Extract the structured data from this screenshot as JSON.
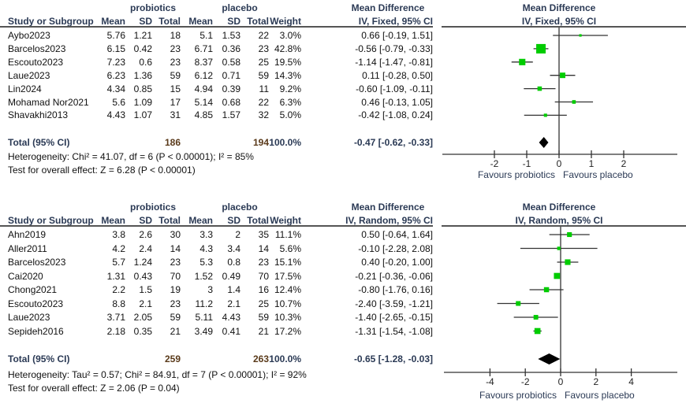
{
  "chart_data": [
    {
      "type": "forest",
      "title": "Mean Difference",
      "method": "IV, Fixed, 95% CI",
      "group_labels": {
        "experimental": "probiotics",
        "control": "placebo"
      },
      "columns": [
        "Study or Subgroup",
        "Mean",
        "SD",
        "Total",
        "Mean",
        "SD",
        "Total",
        "Weight",
        "IV, Fixed, 95% CI"
      ],
      "header_title": "Mean Difference",
      "studies": [
        {
          "name": "Aybo2023",
          "e_mean": "5.76",
          "e_sd": "1.21",
          "e_total": "18",
          "c_mean": "5.1",
          "c_sd": "1.53",
          "c_total": "22",
          "weight": "3.0%",
          "ci_text": "0.66 [-0.19, 1.51]",
          "md": 0.66,
          "lo": -0.19,
          "hi": 1.51,
          "w": 3.0
        },
        {
          "name": "Barcelos2023",
          "e_mean": "6.15",
          "e_sd": "0.42",
          "e_total": "23",
          "c_mean": "6.71",
          "c_sd": "0.36",
          "c_total": "23",
          "weight": "42.8%",
          "ci_text": "-0.56 [-0.79, -0.33]",
          "md": -0.56,
          "lo": -0.79,
          "hi": -0.33,
          "w": 42.8
        },
        {
          "name": "Escouto2023",
          "e_mean": "7.23",
          "e_sd": "0.6",
          "e_total": "23",
          "c_mean": "8.37",
          "c_sd": "0.58",
          "c_total": "25",
          "weight": "19.5%",
          "ci_text": "-1.14 [-1.47, -0.81]",
          "md": -1.14,
          "lo": -1.47,
          "hi": -0.81,
          "w": 19.5
        },
        {
          "name": "Laue2023",
          "e_mean": "6.23",
          "e_sd": "1.36",
          "e_total": "59",
          "c_mean": "6.12",
          "c_sd": "0.71",
          "c_total": "59",
          "weight": "14.3%",
          "ci_text": "0.11 [-0.28, 0.50]",
          "md": 0.11,
          "lo": -0.28,
          "hi": 0.5,
          "w": 14.3
        },
        {
          "name": "Lin2024",
          "e_mean": "4.34",
          "e_sd": "0.85",
          "e_total": "15",
          "c_mean": "4.94",
          "c_sd": "0.39",
          "c_total": "11",
          "weight": "9.2%",
          "ci_text": "-0.60 [-1.09, -0.11]",
          "md": -0.6,
          "lo": -1.09,
          "hi": -0.11,
          "w": 9.2
        },
        {
          "name": "Mohamad Nor2021",
          "e_mean": "5.6",
          "e_sd": "1.09",
          "e_total": "17",
          "c_mean": "5.14",
          "c_sd": "0.68",
          "c_total": "22",
          "weight": "6.3%",
          "ci_text": "0.46 [-0.13, 1.05]",
          "md": 0.46,
          "lo": -0.13,
          "hi": 1.05,
          "w": 6.3
        },
        {
          "name": "Shavakhi2013",
          "e_mean": "4.43",
          "e_sd": "1.07",
          "e_total": "31",
          "c_mean": "4.85",
          "c_sd": "1.57",
          "c_total": "32",
          "weight": "5.0%",
          "ci_text": "-0.42 [-1.08, 0.24]",
          "md": -0.42,
          "lo": -1.08,
          "hi": 0.24,
          "w": 5.0
        }
      ],
      "total": {
        "label": "Total (95% CI)",
        "e_total": "186",
        "c_total": "194",
        "weight": "100.0%",
        "ci_text": "-0.47 [-0.62, -0.33]",
        "md": -0.47,
        "lo": -0.62,
        "hi": -0.33
      },
      "heterogeneity": "Heterogeneity: Chi² = 41.07, df = 6 (P < 0.00001); I² = 85%",
      "overall_effect": "Test for overall effect: Z = 6.28 (P < 0.00001)",
      "xlim": [
        -3.0,
        4.0
      ],
      "ticks": [
        -2,
        -1,
        0,
        1,
        2
      ],
      "tick_labels": [
        "-2",
        "-1",
        "0",
        "1",
        "2"
      ],
      "xlabel_left": "Favours probiotics",
      "xlabel_right": "Favours placebo"
    },
    {
      "type": "forest",
      "title": "Mean Difference",
      "method": "IV, Random, 95% CI",
      "group_labels": {
        "experimental": "probiotics",
        "control": "placebo"
      },
      "columns": [
        "Study or Subgroup",
        "Mean",
        "SD",
        "Total",
        "Mean",
        "SD",
        "Total",
        "Weight",
        "IV, Random, 95% CI"
      ],
      "header_title": "Mean Difference",
      "studies": [
        {
          "name": "Ahn2019",
          "e_mean": "3.8",
          "e_sd": "2.6",
          "e_total": "30",
          "c_mean": "3.3",
          "c_sd": "2",
          "c_total": "35",
          "weight": "11.1%",
          "ci_text": "0.50 [-0.64, 1.64]",
          "md": 0.5,
          "lo": -0.64,
          "hi": 1.64,
          "w": 11.1
        },
        {
          "name": "Aller2011",
          "e_mean": "4.2",
          "e_sd": "2.4",
          "e_total": "14",
          "c_mean": "4.3",
          "c_sd": "3.4",
          "c_total": "14",
          "weight": "5.6%",
          "ci_text": "-0.10 [-2.28, 2.08]",
          "md": -0.1,
          "lo": -2.28,
          "hi": 2.08,
          "w": 5.6
        },
        {
          "name": "Barcelos2023",
          "e_mean": "5.7",
          "e_sd": "1.24",
          "e_total": "23",
          "c_mean": "5.3",
          "c_sd": "0.8",
          "c_total": "23",
          "weight": "15.1%",
          "ci_text": "0.40 [-0.20, 1.00]",
          "md": 0.4,
          "lo": -0.2,
          "hi": 1.0,
          "w": 15.1
        },
        {
          "name": "Cai2020",
          "e_mean": "1.31",
          "e_sd": "0.43",
          "e_total": "70",
          "c_mean": "1.52",
          "c_sd": "0.49",
          "c_total": "70",
          "weight": "17.5%",
          "ci_text": "-0.21 [-0.36, -0.06]",
          "md": -0.21,
          "lo": -0.36,
          "hi": -0.06,
          "w": 17.5
        },
        {
          "name": "Chong2021",
          "e_mean": "2.2",
          "e_sd": "1.5",
          "e_total": "19",
          "c_mean": "3",
          "c_sd": "1.4",
          "c_total": "16",
          "weight": "12.4%",
          "ci_text": "-0.80 [-1.76, 0.16]",
          "md": -0.8,
          "lo": -1.76,
          "hi": 0.16,
          "w": 12.4
        },
        {
          "name": "Escouto2023",
          "e_mean": "8.8",
          "e_sd": "2.1",
          "e_total": "23",
          "c_mean": "11.2",
          "c_sd": "2.1",
          "c_total": "25",
          "weight": "10.7%",
          "ci_text": "-2.40 [-3.59, -1.21]",
          "md": -2.4,
          "lo": -3.59,
          "hi": -1.21,
          "w": 10.7
        },
        {
          "name": "Laue2023",
          "e_mean": "3.71",
          "e_sd": "2.05",
          "e_total": "59",
          "c_mean": "5.11",
          "c_sd": "4.43",
          "c_total": "59",
          "weight": "10.3%",
          "ci_text": "-1.40 [-2.65, -0.15]",
          "md": -1.4,
          "lo": -2.65,
          "hi": -0.15,
          "w": 10.3
        },
        {
          "name": "Sepideh2016",
          "e_mean": "2.18",
          "e_sd": "0.35",
          "e_total": "21",
          "c_mean": "3.49",
          "c_sd": "0.41",
          "c_total": "21",
          "weight": "17.2%",
          "ci_text": "-1.31 [-1.54, -1.08]",
          "md": -1.31,
          "lo": -1.54,
          "hi": -1.08,
          "w": 17.2
        }
      ],
      "total": {
        "label": "Total (95% CI)",
        "e_total": "259",
        "c_total": "263",
        "weight": "100.0%",
        "ci_text": "-0.65 [-1.28, -0.03]",
        "md": -0.65,
        "lo": -1.28,
        "hi": -0.03
      },
      "heterogeneity": "Heterogeneity: Tau² = 0.57; Chi² = 84.91, df = 7 (P < 0.00001); I² = 92%",
      "overall_effect": "Test for overall effect: Z = 2.06 (P = 0.04)",
      "xlim": [
        -6.5,
        6.5
      ],
      "ticks": [
        -4,
        -2,
        0,
        2,
        4
      ],
      "tick_labels": [
        "-4",
        "-2",
        "0",
        "2",
        "4"
      ],
      "xlabel_left": "Favours probiotics",
      "xlabel_right": "Favours placebo"
    }
  ],
  "colors": {
    "marker": "#00cc00",
    "diamond": "#000000",
    "line": "#333333",
    "header": "#2b3a55",
    "total_n": "#5a3a1a"
  }
}
